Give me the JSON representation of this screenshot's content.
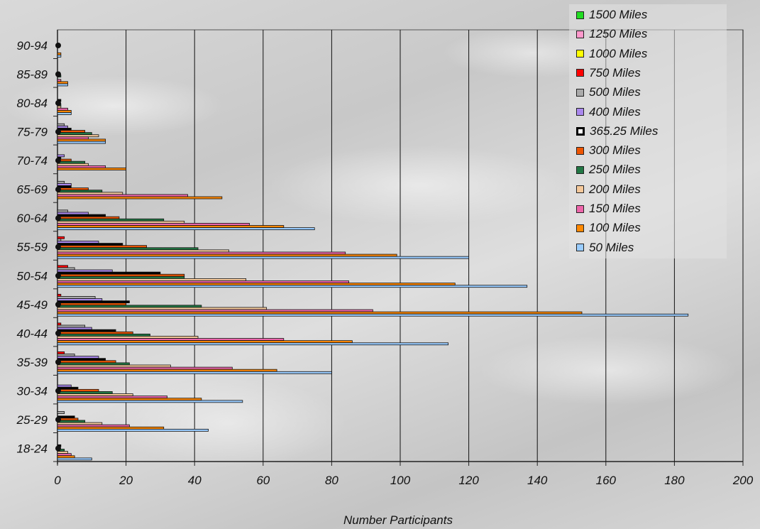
{
  "chart_data": {
    "type": "bar",
    "orientation": "horizontal",
    "xlabel": "Number Participants",
    "xlim": [
      0,
      200
    ],
    "xticks": [
      0,
      20,
      40,
      60,
      80,
      100,
      120,
      140,
      160,
      180,
      200
    ],
    "grid": "vertical",
    "legend_position": "top-right",
    "categories": [
      "18-24",
      "25-29",
      "30-34",
      "35-39",
      "40-44",
      "45-49",
      "50-54",
      "55-59",
      "60-64",
      "65-69",
      "70-74",
      "75-79",
      "80-84",
      "85-89",
      "90-94"
    ],
    "series": [
      {
        "name": "1500 Miles",
        "color": "#22dd22",
        "values": [
          0,
          0,
          0,
          0,
          0,
          0,
          0,
          0,
          0,
          0,
          0,
          0,
          0,
          0,
          0
        ]
      },
      {
        "name": "1250 Miles",
        "color": "#ff99cc",
        "values": [
          0,
          0,
          0,
          0,
          0,
          0,
          0,
          0,
          0,
          0,
          0,
          0,
          0,
          0,
          0
        ]
      },
      {
        "name": "1000 Miles",
        "color": "#ffff00",
        "values": [
          0,
          0,
          0,
          0,
          0,
          0,
          0,
          0,
          0,
          0,
          0,
          0,
          0,
          0,
          0
        ]
      },
      {
        "name": "750 Miles",
        "color": "#ff0000",
        "values": [
          0,
          0,
          0,
          2,
          1,
          1,
          3,
          2,
          0,
          0,
          0,
          0,
          0,
          0,
          0
        ]
      },
      {
        "name": "500 Miles",
        "color": "#aaaaaa",
        "values": [
          0,
          2,
          0,
          5,
          8,
          11,
          5,
          1,
          3,
          2,
          0,
          2,
          0,
          0,
          0
        ]
      },
      {
        "name": "400 Miles",
        "color": "#aa88ee",
        "values": [
          0,
          0,
          4,
          12,
          10,
          13,
          16,
          12,
          9,
          4,
          2,
          3,
          0,
          0,
          0
        ]
      },
      {
        "name": "365.25 Miles",
        "color": "#000000",
        "values": [
          1,
          5,
          6,
          14,
          17,
          21,
          30,
          19,
          14,
          4,
          1,
          4,
          1,
          0,
          0
        ]
      },
      {
        "name": "300 Miles",
        "color": "#ee5500",
        "values": [
          0,
          6,
          12,
          17,
          22,
          20,
          37,
          26,
          18,
          9,
          4,
          8,
          0,
          0,
          0
        ]
      },
      {
        "name": "250 Miles",
        "color": "#227744",
        "values": [
          2,
          8,
          16,
          21,
          27,
          42,
          37,
          41,
          31,
          13,
          8,
          10,
          1,
          1,
          0
        ]
      },
      {
        "name": "200 Miles",
        "color": "#f5c89a",
        "values": [
          3,
          13,
          22,
          33,
          41,
          61,
          55,
          50,
          37,
          19,
          9,
          12,
          1,
          0,
          0
        ]
      },
      {
        "name": "150 Miles",
        "color": "#ee66aa",
        "values": [
          4,
          21,
          32,
          51,
          66,
          92,
          85,
          84,
          56,
          38,
          14,
          9,
          3,
          1,
          0
        ]
      },
      {
        "name": "100 Miles",
        "color": "#ff8800",
        "values": [
          5,
          31,
          42,
          64,
          86,
          153,
          116,
          99,
          66,
          48,
          20,
          14,
          4,
          3,
          1
        ]
      },
      {
        "name": "50 Miles",
        "color": "#99ccff",
        "values": [
          10,
          44,
          54,
          80,
          114,
          184,
          137,
          120,
          75,
          0,
          0,
          14,
          4,
          3,
          1
        ]
      }
    ]
  }
}
